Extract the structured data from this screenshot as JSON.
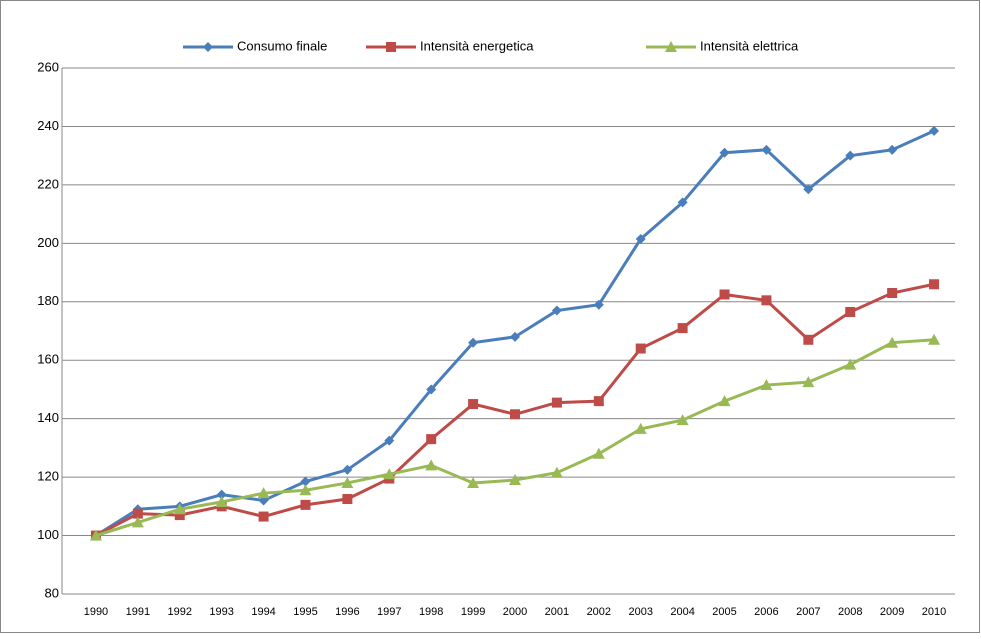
{
  "chart_data": {
    "type": "line",
    "categories": [
      "1990",
      "1991",
      "1992",
      "1993",
      "1994",
      "1995",
      "1996",
      "1997",
      "1998",
      "1999",
      "2000",
      "2001",
      "2002",
      "2003",
      "2004",
      "2005",
      "2006",
      "2007",
      "2008",
      "2009",
      "2010"
    ],
    "series": [
      {
        "name": "Consumo finale",
        "color": "#4a7ebb",
        "marker": "diamond",
        "values": [
          100,
          109,
          110,
          114,
          112,
          118.5,
          122.5,
          132.5,
          150,
          166,
          168,
          177,
          179,
          201.5,
          214,
          231,
          232,
          218.5,
          230,
          232,
          238.5
        ]
      },
      {
        "name": "Intensità energetica",
        "color": "#be4b48",
        "marker": "square",
        "values": [
          100,
          107.5,
          107,
          110,
          106.5,
          110.5,
          112.5,
          119.5,
          133,
          145,
          141.5,
          145.5,
          146,
          164,
          171,
          182.5,
          180.5,
          167,
          176.5,
          183,
          186
        ]
      },
      {
        "name": "Intensità elettrica",
        "color": "#98b954",
        "marker": "triangle",
        "values": [
          100,
          104.5,
          109,
          111.5,
          114.5,
          115.5,
          118,
          121,
          124,
          118,
          119,
          121.5,
          128,
          136.5,
          139.5,
          146,
          151.5,
          152.5,
          158.5,
          166,
          167
        ]
      }
    ],
    "ylim": [
      80,
      260
    ],
    "yticks": [
      80,
      100,
      120,
      140,
      160,
      180,
      200,
      220,
      240,
      260
    ],
    "grid": true,
    "legend": "top"
  }
}
